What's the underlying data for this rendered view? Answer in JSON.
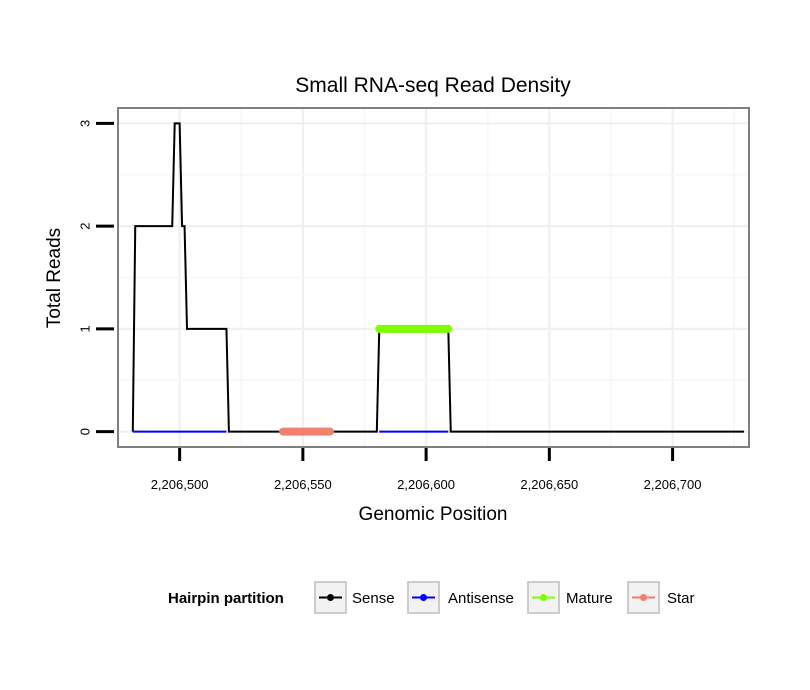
{
  "chart_data": {
    "type": "line",
    "title": "Small RNA-seq Read Density",
    "xlabel": "Genomic Position",
    "ylabel": "Total Reads",
    "xlim": [
      2206475,
      2206731
    ],
    "ylim": [
      -0.15,
      3.15
    ],
    "x_ticks": [
      2206500,
      2206550,
      2206600,
      2206650,
      2206700
    ],
    "x_tick_labels": [
      "2,206,500",
      "2,206,550",
      "2,206,600",
      "2,206,650",
      "2,206,700"
    ],
    "y_ticks": [
      0,
      1,
      2,
      3
    ],
    "y_tick_labels": [
      "0",
      "1",
      "2",
      "3"
    ],
    "grid": true,
    "legend": {
      "title": "Hairpin partition",
      "position": "bottom",
      "entries": [
        "Sense",
        "Antisense",
        "Mature",
        "Star"
      ]
    },
    "series": [
      {
        "name": "Sense",
        "color": "#000000",
        "x": [
          2206481,
          2206482,
          2206483,
          2206497,
          2206498,
          2206500,
          2206501,
          2206502,
          2206503,
          2206519,
          2206520,
          2206580,
          2206581,
          2206609,
          2206610,
          2206729
        ],
        "y": [
          0,
          2,
          2,
          2,
          3,
          3,
          2,
          2,
          1,
          1,
          0,
          0,
          1,
          1,
          0,
          0
        ]
      },
      {
        "name": "Antisense",
        "color": "#0000ff",
        "x": [
          2206481,
          2206519,
          2206581,
          2206609
        ],
        "y": [
          0,
          0,
          0,
          0
        ],
        "segments": [
          [
            0,
            1
          ],
          [
            2,
            3
          ]
        ]
      },
      {
        "name": "Mature",
        "color": "#7fff00",
        "x": [
          2206581,
          2206609
        ],
        "y": [
          1,
          1
        ]
      },
      {
        "name": "Star",
        "color": "#f08070",
        "x": [
          2206542,
          2206561
        ],
        "y": [
          0,
          0
        ]
      }
    ]
  }
}
